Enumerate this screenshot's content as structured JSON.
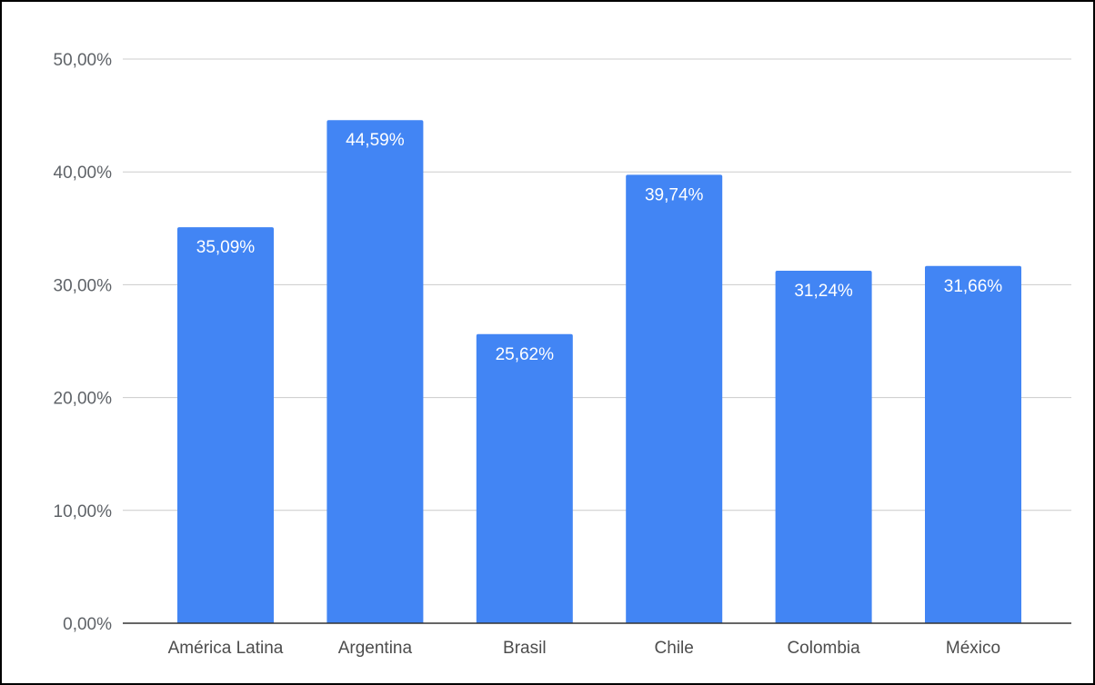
{
  "chart_data": {
    "type": "bar",
    "title": "",
    "xlabel": "",
    "ylabel": "",
    "categories": [
      "América Latina",
      "Argentina",
      "Brasil",
      "Chile",
      "Colombia",
      "México"
    ],
    "values": [
      35.09,
      44.59,
      25.62,
      39.74,
      31.24,
      31.66
    ],
    "data_labels": [
      "35,09%",
      "44,59%",
      "25,62%",
      "39,74%",
      "31,24%",
      "31,66%"
    ],
    "ylim": [
      0,
      50
    ],
    "yticks": [
      0,
      10,
      20,
      30,
      40,
      50
    ],
    "ytick_labels": [
      "0,00%",
      "10,00%",
      "20,00%",
      "30,00%",
      "40,00%",
      "50,00%"
    ],
    "grid": true,
    "legend": "none",
    "colors": {
      "bar": "#4285f4",
      "grid": "#cccccc",
      "axis": "#333333",
      "border": "#000000"
    }
  }
}
